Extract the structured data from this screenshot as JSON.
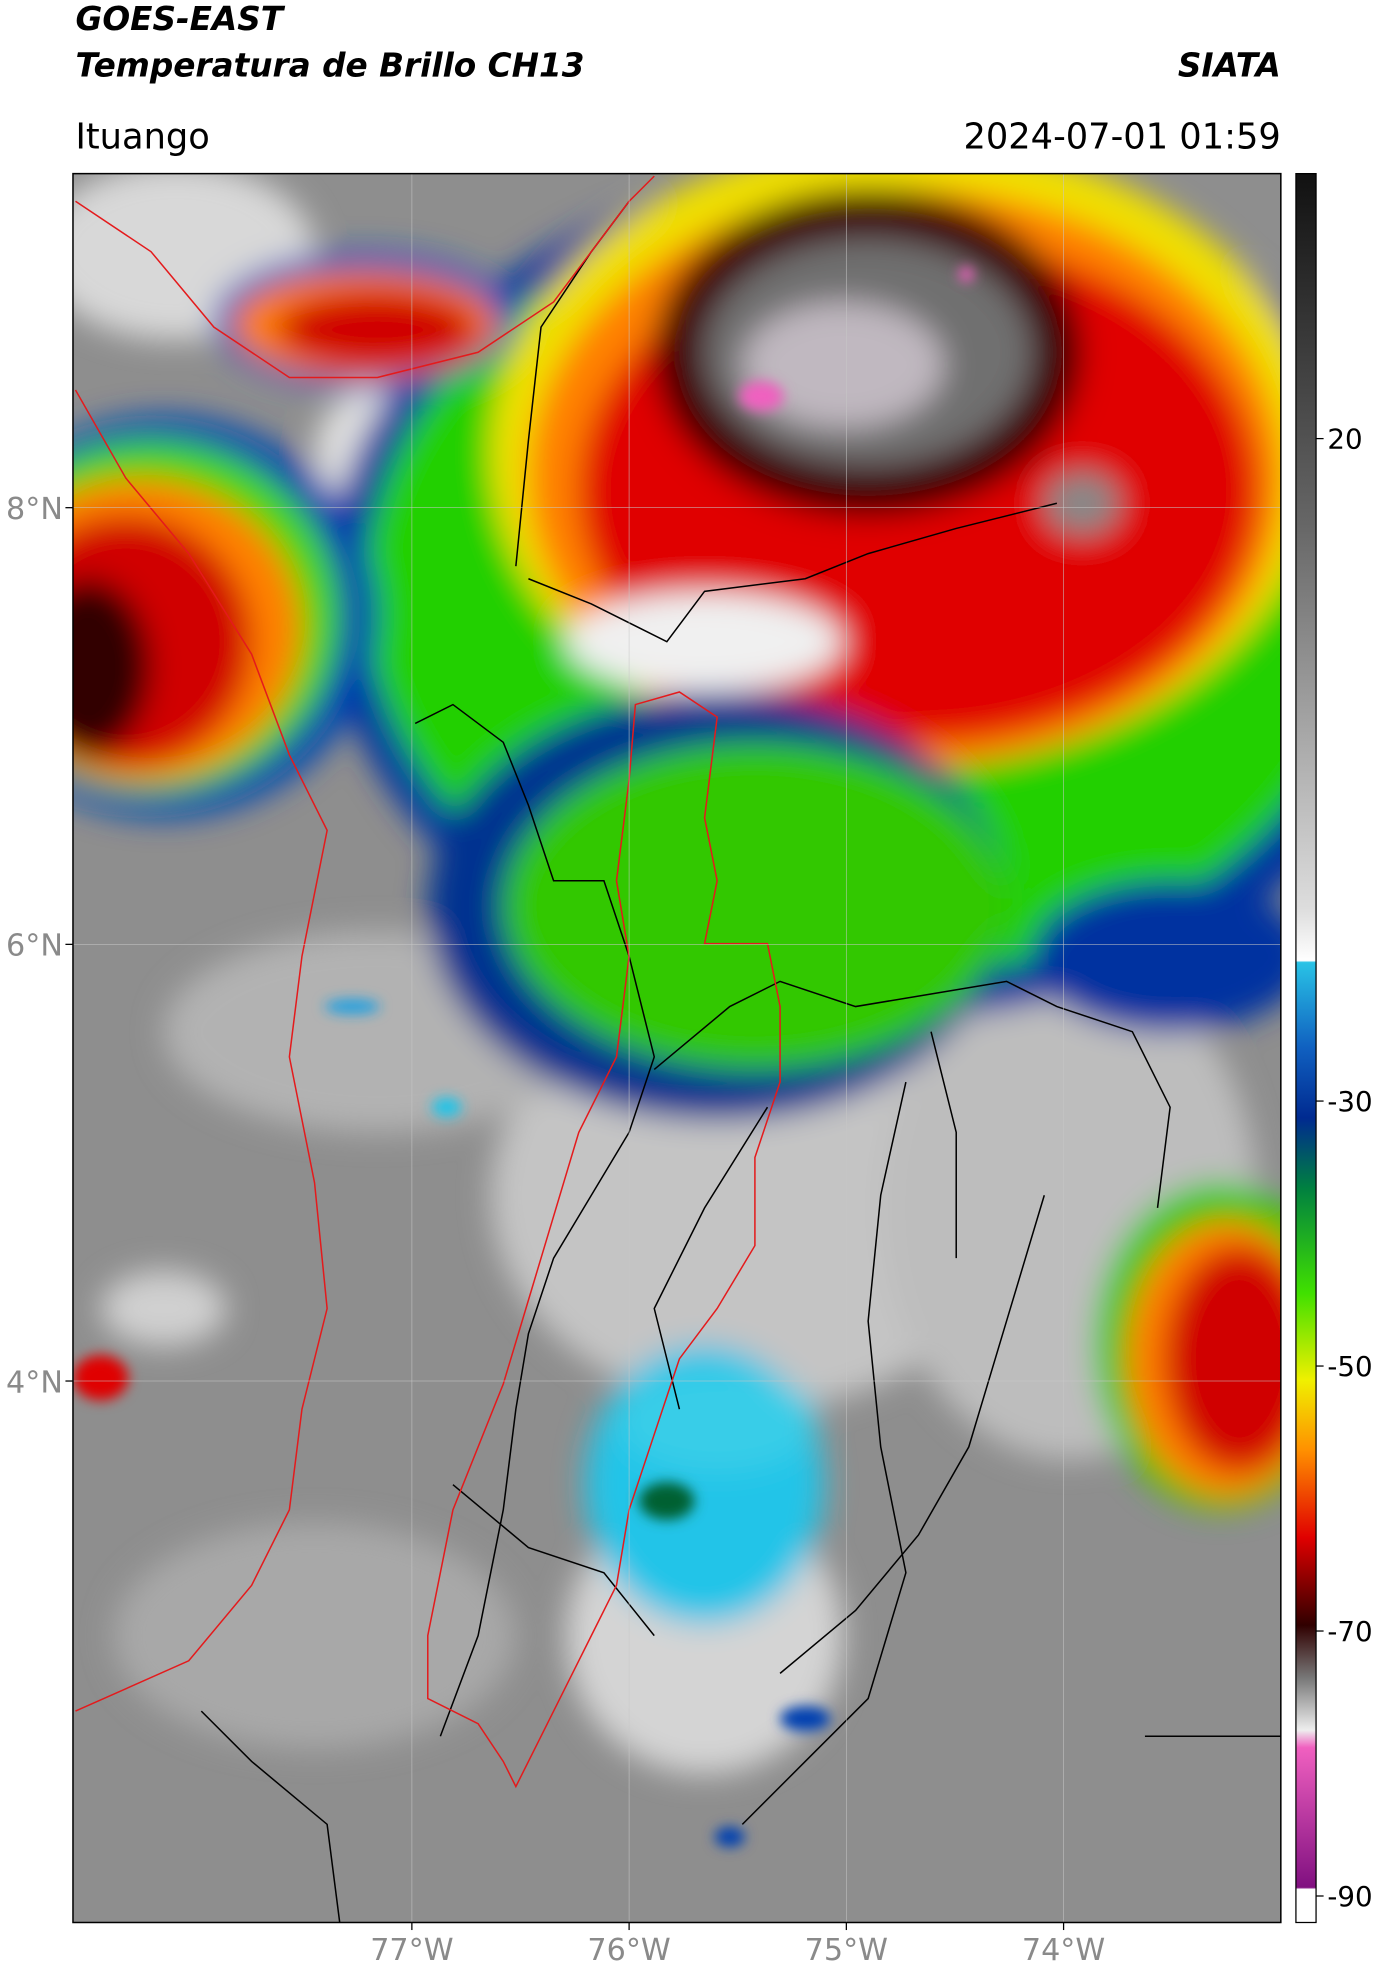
{
  "header": {
    "title": "GOES-EAST",
    "subtitle": "Temperatura de Brillo CH13",
    "source": "SIATA",
    "location": "Ituango",
    "datetime": "2024-07-01 01:59"
  },
  "map": {
    "xlim": [
      -78.56,
      -73.0
    ],
    "ylim": [
      1.52,
      9.53
    ],
    "grid": true,
    "xticks": [
      {
        "value": -77,
        "label": "77°W"
      },
      {
        "value": -76,
        "label": "76°W"
      },
      {
        "value": -75,
        "label": "75°W"
      },
      {
        "value": -74,
        "label": "74°W"
      }
    ],
    "yticks": [
      {
        "value": 8,
        "label": "8°N"
      },
      {
        "value": 6,
        "label": "6°N"
      },
      {
        "value": 4,
        "label": "4°N"
      }
    ]
  },
  "colorbar": {
    "lim": [
      -92,
      40
    ],
    "ticks": [
      20,
      -30,
      -50,
      -70,
      -90
    ]
  }
}
